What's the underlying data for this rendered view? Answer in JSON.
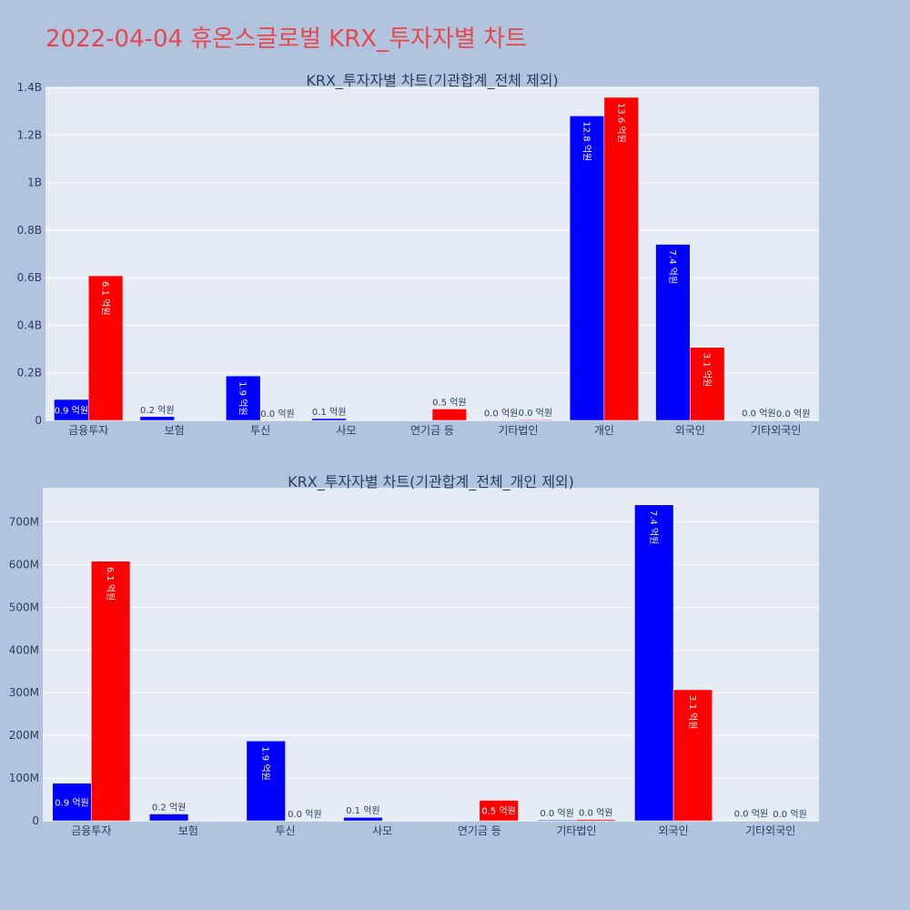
{
  "title": "2022-04-04 휴온스글로벌 KRX_투자자별 차트",
  "colors": {
    "series_a": "#0000ff",
    "series_b": "#ff0000",
    "plot_bg": "#e5ecf6",
    "page_bg": "#b0c4de",
    "title": "#e8474f"
  },
  "chart_data": [
    {
      "type": "bar",
      "title": "KRX_투자자별 차트(기관합계_전체 제외)",
      "categories": [
        "금융투자",
        "보험",
        "투신",
        "사모",
        "연기금 등",
        "기타법인",
        "개인",
        "외국인",
        "기타외국인"
      ],
      "series": [
        {
          "values": [
            88000000,
            16000000,
            187000000,
            8000000,
            0,
            2000000,
            1280000000,
            740000000,
            1000000
          ],
          "labels": [
            "0.9 억원",
            "0.2 억원",
            "1.9 억원",
            "0.1 억원",
            "",
            "0.0 억원",
            "12.8 억원",
            "7.4 억원",
            "0.0 억원"
          ]
        },
        {
          "values": [
            608000000,
            0,
            0,
            0,
            48000000,
            3000000,
            1358000000,
            307000000,
            0
          ],
          "labels": [
            "6.1 억원",
            "",
            "0.0 억원",
            "",
            "0.5 억원",
            "0.0 억원",
            "13.6 억원",
            "3.1 억원",
            "0.0 억원"
          ]
        }
      ],
      "ylim": [
        0,
        1400000000
      ],
      "yticks": [
        0,
        200000000,
        400000000,
        600000000,
        800000000,
        1000000000,
        1200000000,
        1400000000
      ],
      "ytick_labels": [
        "0",
        "0.2B",
        "0.4B",
        "0.6B",
        "0.8B",
        "1B",
        "1.2B",
        "1.4B"
      ],
      "grid": true,
      "legend": "none"
    },
    {
      "type": "bar",
      "title": "KRX_투자자별 차트(기관합계_전체_개인 제외)",
      "categories": [
        "금융투자",
        "보험",
        "투신",
        "사모",
        "연기금 등",
        "기타법인",
        "외국인",
        "기타외국인"
      ],
      "series": [
        {
          "values": [
            88000000,
            16000000,
            187000000,
            8000000,
            0,
            2000000,
            740000000,
            1000000
          ],
          "labels": [
            "0.9 억원",
            "0.2 억원",
            "1.9 억원",
            "0.1 억원",
            "",
            "0.0 억원",
            "7.4 억원",
            "0.0 억원"
          ]
        },
        {
          "values": [
            608000000,
            0,
            0,
            0,
            48000000,
            3000000,
            307000000,
            0
          ],
          "labels": [
            "6.1 억원",
            "",
            "0.0 억원",
            "",
            "0.5 억원",
            "0.0 억원",
            "3.1 억원",
            "0.0 억원"
          ]
        }
      ],
      "ylim": [
        0,
        780000000
      ],
      "yticks": [
        0,
        100000000,
        200000000,
        300000000,
        400000000,
        500000000,
        600000000,
        700000000
      ],
      "ytick_labels": [
        "0",
        "100M",
        "200M",
        "300M",
        "400M",
        "500M",
        "600M",
        "700M"
      ],
      "grid": true,
      "legend": "none"
    }
  ]
}
